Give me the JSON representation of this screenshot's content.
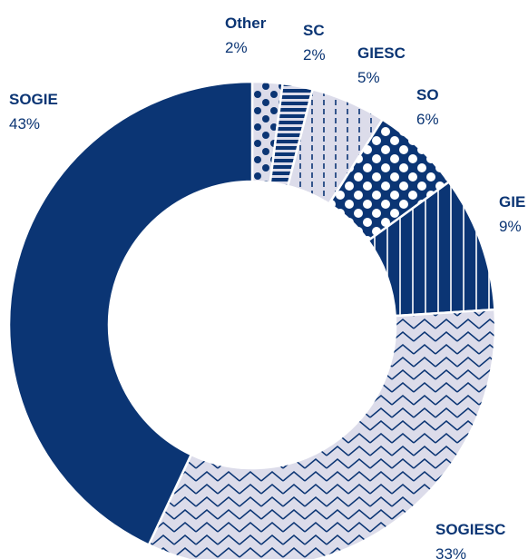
{
  "chart_data": {
    "type": "pie",
    "variant": "donut",
    "title": "",
    "categories": [
      "Other",
      "SC",
      "GIESC",
      "SO",
      "GIE",
      "SOGIESC",
      "SOGIE"
    ],
    "values": [
      2,
      2,
      5,
      6,
      9,
      33,
      43
    ],
    "value_labels": [
      "2%",
      "2%",
      "5%",
      "6%",
      "9%",
      "33%",
      "43%"
    ],
    "unit": "%",
    "start": "12 o'clock, clockwise",
    "legend": "none (direct labels)",
    "slices": [
      {
        "name": "Other",
        "value": 2,
        "label": "2%",
        "pattern": "dots",
        "color": "#0b3574",
        "bg": "#dcdcea"
      },
      {
        "name": "SC",
        "value": 2,
        "label": "2%",
        "pattern": "horizontal-lines",
        "color": "#0b3574",
        "bg": "#dcdcea"
      },
      {
        "name": "GIESC",
        "value": 5,
        "label": "5%",
        "pattern": "dashed-vertical",
        "color": "#0b3574",
        "bg": "#dcdcea"
      },
      {
        "name": "SO",
        "value": 6,
        "label": "6%",
        "pattern": "dots-on-navy",
        "color": "#ffffff",
        "bg": "#0b3574"
      },
      {
        "name": "GIE",
        "value": 9,
        "label": "9%",
        "pattern": "vertical-lines",
        "color": "#ffffff",
        "bg": "#0b3574"
      },
      {
        "name": "SOGIESC",
        "value": 33,
        "label": "33%",
        "pattern": "zigzag",
        "color": "#0b3574",
        "bg": "#dcdcea"
      },
      {
        "name": "SOGIE",
        "value": 43,
        "label": "43%",
        "pattern": "solid",
        "color": "#0b3574",
        "bg": "#0b3574"
      }
    ]
  },
  "colors": {
    "navy": "#0b3574",
    "lavender": "#dcdcea",
    "white": "#ffffff"
  }
}
